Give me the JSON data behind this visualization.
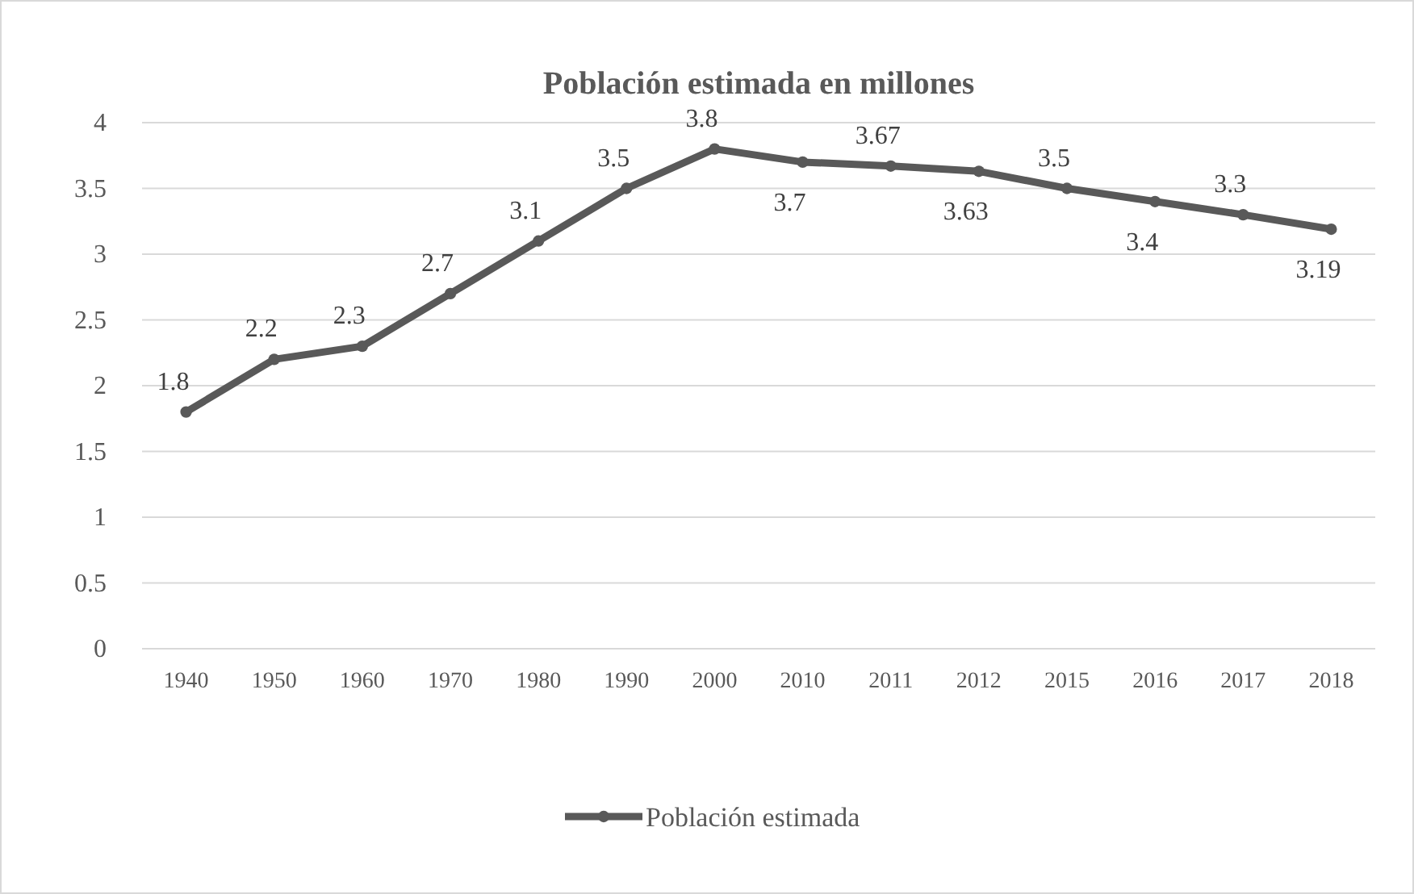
{
  "chart_data": {
    "type": "line",
    "title": "Población estimada en millones",
    "categories": [
      "1940",
      "1950",
      "1960",
      "1970",
      "1980",
      "1990",
      "2000",
      "2010",
      "2011",
      "2012",
      "2015",
      "2016",
      "2017",
      "2018"
    ],
    "series": [
      {
        "name": "Población estimada",
        "color": "#595959",
        "values": [
          1.8,
          2.2,
          2.3,
          2.7,
          3.1,
          3.5,
          3.8,
          3.7,
          3.67,
          3.63,
          3.5,
          3.4,
          3.3,
          3.19
        ]
      }
    ],
    "ylim": [
      0,
      4
    ],
    "yticks": [
      0,
      0.5,
      1,
      1.5,
      2,
      2.5,
      3,
      3.5,
      4
    ],
    "grid": "y",
    "legend": "bottom",
    "marker": "circle",
    "data_labels": true
  }
}
